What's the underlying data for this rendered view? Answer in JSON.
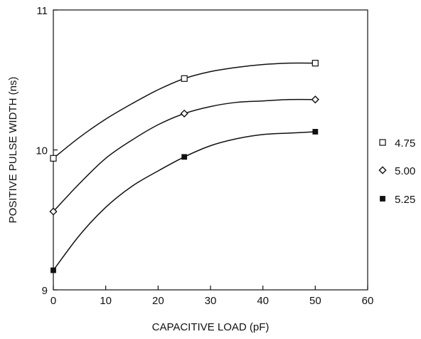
{
  "chart_data": {
    "type": "line",
    "title": "",
    "xlabel": "CAPACITIVE LOAD (pF)",
    "ylabel": "POSITIVE PULSE WIDTH (ns)",
    "xlim": [
      0,
      60
    ],
    "ylim": [
      9,
      11
    ],
    "x_ticks": [
      0,
      10,
      20,
      30,
      40,
      50,
      60
    ],
    "y_ticks": [
      9,
      10,
      11
    ],
    "x_tick_labels": [
      "0",
      "10",
      "20",
      "30",
      "40",
      "50",
      "60"
    ],
    "y_tick_labels": [
      "9",
      "10",
      "11"
    ],
    "grid": false,
    "legend_position": "right",
    "series": [
      {
        "name": "4.75",
        "marker": "open-square",
        "color": "#111111",
        "points": [
          {
            "x": 0,
            "y": 9.94
          },
          {
            "x": 25,
            "y": 10.51
          },
          {
            "x": 50,
            "y": 10.62
          }
        ],
        "curve": [
          {
            "x": 0,
            "y": 9.94
          },
          {
            "x": 5,
            "y": 10.09
          },
          {
            "x": 10,
            "y": 10.22
          },
          {
            "x": 15,
            "y": 10.33
          },
          {
            "x": 20,
            "y": 10.43
          },
          {
            "x": 25,
            "y": 10.51
          },
          {
            "x": 30,
            "y": 10.56
          },
          {
            "x": 35,
            "y": 10.59
          },
          {
            "x": 40,
            "y": 10.61
          },
          {
            "x": 45,
            "y": 10.62
          },
          {
            "x": 50,
            "y": 10.62
          }
        ]
      },
      {
        "name": "5.00",
        "marker": "open-diamond",
        "color": "#111111",
        "points": [
          {
            "x": 0,
            "y": 9.56
          },
          {
            "x": 25,
            "y": 10.26
          },
          {
            "x": 50,
            "y": 10.36
          }
        ],
        "curve": [
          {
            "x": 0,
            "y": 9.56
          },
          {
            "x": 5,
            "y": 9.76
          },
          {
            "x": 10,
            "y": 9.94
          },
          {
            "x": 15,
            "y": 10.07
          },
          {
            "x": 20,
            "y": 10.18
          },
          {
            "x": 25,
            "y": 10.26
          },
          {
            "x": 30,
            "y": 10.31
          },
          {
            "x": 35,
            "y": 10.34
          },
          {
            "x": 40,
            "y": 10.35
          },
          {
            "x": 45,
            "y": 10.36
          },
          {
            "x": 50,
            "y": 10.36
          }
        ]
      },
      {
        "name": "5.25",
        "marker": "filled-square",
        "color": "#111111",
        "points": [
          {
            "x": 0,
            "y": 9.14
          },
          {
            "x": 25,
            "y": 9.95
          },
          {
            "x": 50,
            "y": 10.13
          }
        ],
        "curve": [
          {
            "x": 0,
            "y": 9.14
          },
          {
            "x": 5,
            "y": 9.39
          },
          {
            "x": 10,
            "y": 9.59
          },
          {
            "x": 15,
            "y": 9.74
          },
          {
            "x": 20,
            "y": 9.85
          },
          {
            "x": 25,
            "y": 9.95
          },
          {
            "x": 30,
            "y": 10.03
          },
          {
            "x": 35,
            "y": 10.08
          },
          {
            "x": 40,
            "y": 10.11
          },
          {
            "x": 45,
            "y": 10.12
          },
          {
            "x": 50,
            "y": 10.13
          }
        ]
      }
    ]
  }
}
